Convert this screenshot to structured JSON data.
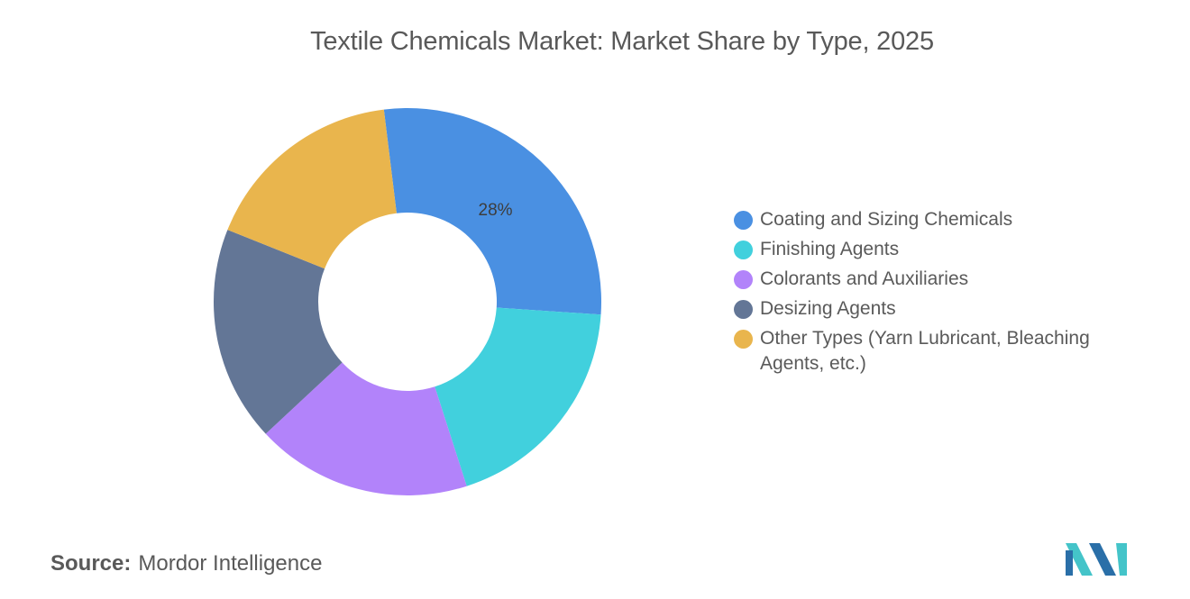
{
  "title": "Textile Chemicals Market: Market Share by Type, 2025",
  "chart_data": {
    "type": "pie",
    "subtype": "donut",
    "title": "Textile Chemicals Market: Market Share by Type, 2025",
    "categories": [
      "Coating and Sizing Chemicals",
      "Finishing Agents",
      "Colorants and Auxiliaries",
      "Desizing Agents",
      "Other Types (Yarn Lubricant, Bleaching Agents, etc.)"
    ],
    "values": [
      28,
      19,
      18,
      18,
      17
    ],
    "colors": [
      "#4a90e2",
      "#41d0dd",
      "#b283fa",
      "#637696",
      "#e9b54d"
    ],
    "data_labels": [
      "28%",
      "",
      "",
      "",
      ""
    ],
    "legend_position": "right"
  },
  "source": {
    "label": "Source:",
    "value": "Mordor Intelligence"
  },
  "logo": {
    "name": "mordor-intelligence-logo",
    "colors": [
      "#2a6fa8",
      "#44c4c9"
    ]
  }
}
